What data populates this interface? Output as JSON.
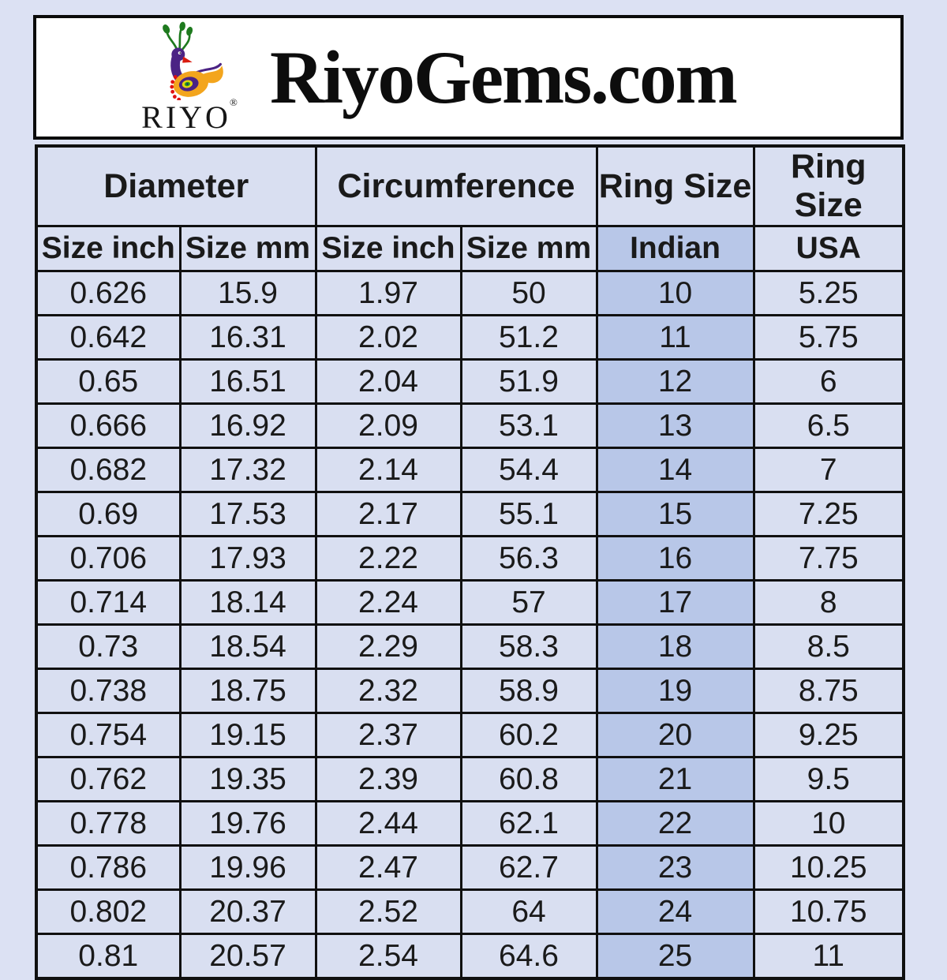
{
  "header": {
    "title": "RiyoGems.com",
    "logo": {
      "icon": "riyo-peacock-logo",
      "wordmark": "RIYO",
      "registered_mark": "®"
    }
  },
  "table": {
    "group_headers": [
      "Diameter",
      "Circumference",
      "Ring Size",
      "Ring Size"
    ],
    "sub_headers": [
      "Size inch",
      "Size mm",
      "Size inch",
      "Size mm",
      "Indian",
      "USA"
    ],
    "column_keys": [
      "diameter-size-inch",
      "diameter-size-mm",
      "circumference-size-inch",
      "circumference-size-mm",
      "ring-size-indian",
      "ring-size-usa"
    ],
    "highlight_column_index": 4,
    "rows": [
      [
        "0.626",
        "15.9",
        "1.97",
        "50",
        "10",
        "5.25"
      ],
      [
        "0.642",
        "16.31",
        "2.02",
        "51.2",
        "11",
        "5.75"
      ],
      [
        "0.65",
        "16.51",
        "2.04",
        "51.9",
        "12",
        "6"
      ],
      [
        "0.666",
        "16.92",
        "2.09",
        "53.1",
        "13",
        "6.5"
      ],
      [
        "0.682",
        "17.32",
        "2.14",
        "54.4",
        "14",
        "7"
      ],
      [
        "0.69",
        "17.53",
        "2.17",
        "55.1",
        "15",
        "7.25"
      ],
      [
        "0.706",
        "17.93",
        "2.22",
        "56.3",
        "16",
        "7.75"
      ],
      [
        "0.714",
        "18.14",
        "2.24",
        "57",
        "17",
        "8"
      ],
      [
        "0.73",
        "18.54",
        "2.29",
        "58.3",
        "18",
        "8.5"
      ],
      [
        "0.738",
        "18.75",
        "2.32",
        "58.9",
        "19",
        "8.75"
      ],
      [
        "0.754",
        "19.15",
        "2.37",
        "60.2",
        "20",
        "9.25"
      ],
      [
        "0.762",
        "19.35",
        "2.39",
        "60.8",
        "21",
        "9.5"
      ],
      [
        "0.778",
        "19.76",
        "2.44",
        "62.1",
        "22",
        "10"
      ],
      [
        "0.786",
        "19.96",
        "2.47",
        "62.7",
        "23",
        "10.25"
      ],
      [
        "0.802",
        "20.37",
        "2.52",
        "64",
        "24",
        "10.75"
      ],
      [
        "0.81",
        "20.57",
        "2.54",
        "64.6",
        "25",
        "11"
      ]
    ]
  },
  "colors": {
    "page_bg": "#dce1f3",
    "cell_bg": "#d9dff1",
    "highlight_bg": "#b8c7e8",
    "border": "#101010",
    "title_color": "#0d0d0d",
    "logo_purple": "#4b2384",
    "logo_orange": "#f3a51d",
    "logo_green": "#1e7a1e",
    "logo_red": "#e01111"
  },
  "chart_data": {
    "type": "table",
    "title": "RiyoGems.com",
    "columns": [
      "Diameter Size inch",
      "Diameter Size mm",
      "Circumference Size inch",
      "Circumference Size mm",
      "Ring Size Indian",
      "Ring Size USA"
    ],
    "rows": [
      [
        0.626,
        15.9,
        1.97,
        50,
        10,
        5.25
      ],
      [
        0.642,
        16.31,
        2.02,
        51.2,
        11,
        5.75
      ],
      [
        0.65,
        16.51,
        2.04,
        51.9,
        12,
        6
      ],
      [
        0.666,
        16.92,
        2.09,
        53.1,
        13,
        6.5
      ],
      [
        0.682,
        17.32,
        2.14,
        54.4,
        14,
        7
      ],
      [
        0.69,
        17.53,
        2.17,
        55.1,
        15,
        7.25
      ],
      [
        0.706,
        17.93,
        2.22,
        56.3,
        16,
        7.75
      ],
      [
        0.714,
        18.14,
        2.24,
        57,
        17,
        8
      ],
      [
        0.73,
        18.54,
        2.29,
        58.3,
        18,
        8.5
      ],
      [
        0.738,
        18.75,
        2.32,
        58.9,
        19,
        8.75
      ],
      [
        0.754,
        19.15,
        2.37,
        60.2,
        20,
        9.25
      ],
      [
        0.762,
        19.35,
        2.39,
        60.8,
        21,
        9.5
      ],
      [
        0.778,
        19.76,
        2.44,
        62.1,
        22,
        10
      ],
      [
        0.786,
        19.96,
        2.47,
        62.7,
        23,
        10.25
      ],
      [
        0.802,
        20.37,
        2.52,
        64,
        24,
        10.75
      ],
      [
        0.81,
        20.57,
        2.54,
        64.6,
        25,
        11
      ]
    ]
  }
}
